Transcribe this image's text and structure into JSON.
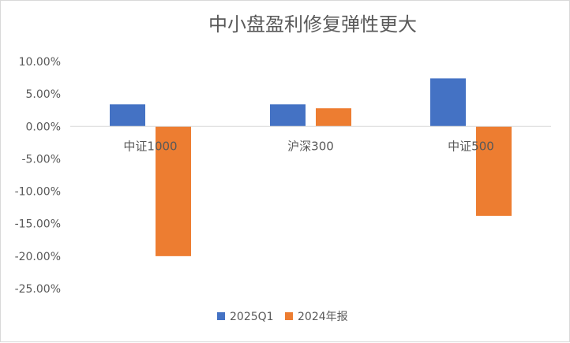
{
  "chart_data": {
    "type": "bar",
    "title": "中小盘盈利修复弹性更大",
    "xlabel": "",
    "ylabel": "",
    "categories": [
      "中证1000",
      "沪深300",
      "中证500"
    ],
    "series": [
      {
        "name": "2025Q1",
        "color": "#4472C4",
        "values": [
          3.4,
          3.4,
          7.4
        ]
      },
      {
        "name": "2024年报",
        "color": "#ED7D31",
        "values": [
          -20.0,
          2.8,
          -13.8
        ]
      }
    ],
    "ylim": [
      -25,
      10
    ],
    "y_ticks": [
      10,
      5,
      0,
      -5,
      -10,
      -15,
      -20,
      -25
    ],
    "y_tick_labels": [
      "10.00%",
      "5.00%",
      "0.00%",
      "-5.00%",
      "-10.00%",
      "-15.00%",
      "-20.00%",
      "-25.00%"
    ],
    "grid": false,
    "legend_position": "bottom"
  }
}
